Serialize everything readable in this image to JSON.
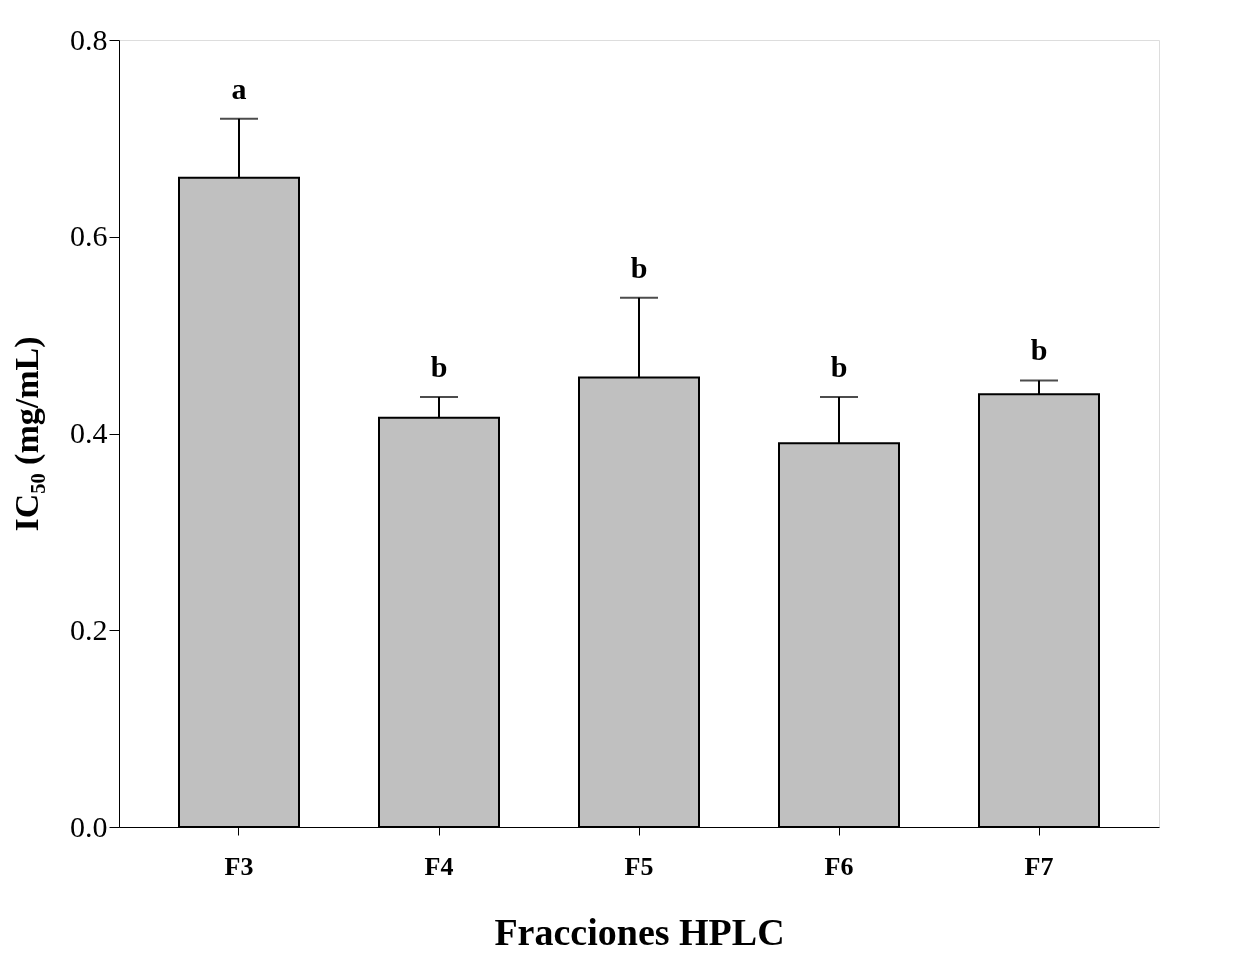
{
  "chart_data": {
    "type": "bar",
    "xlabel": "Fracciones HPLC",
    "ylabel": "IC₅₀ (mg/mL)",
    "categories": [
      "F3",
      "F4",
      "F5",
      "F6",
      "F7"
    ],
    "values": [
      0.66,
      0.416,
      0.457,
      0.39,
      0.44
    ],
    "color": "#c0c0c0",
    "errors": [
      [
        0.66,
        0.72
      ],
      [
        0.416,
        0.437
      ],
      [
        0.457,
        0.538
      ],
      [
        0.39,
        0.437
      ],
      [
        0.44,
        0.454
      ]
    ],
    "ylim": [
      0,
      0.8
    ],
    "yticks": [
      {
        "value": 0,
        "label": "0.0"
      },
      {
        "value": 0.2,
        "label": "0.2"
      },
      {
        "value": 0.4,
        "label": "0.4"
      },
      {
        "value": 0.6,
        "label": "0.6"
      },
      {
        "value": 0.8,
        "label": "0.8"
      }
    ],
    "grid": false,
    "annotations": [
      "a",
      "b",
      "b",
      "b",
      "b"
    ]
  }
}
